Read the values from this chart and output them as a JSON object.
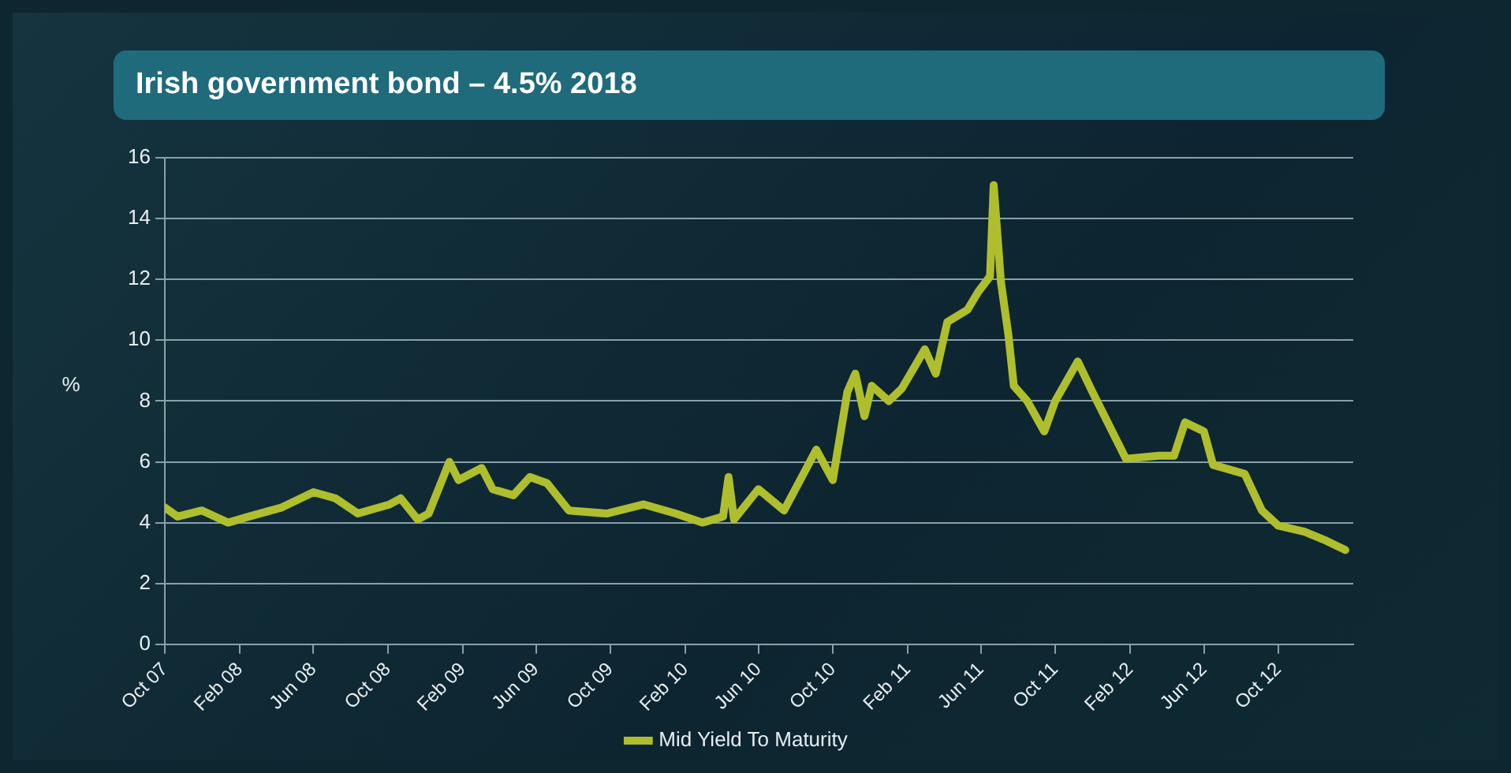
{
  "chart_data": {
    "type": "line",
    "title": "Irish government bond – 4.5% 2018",
    "ylabel": "%",
    "x": [
      "2007-10-01",
      "2007-10-22",
      "2007-12-01",
      "2008-01-13",
      "2008-02-16",
      "2008-04-10",
      "2008-06-01",
      "2008-07-07",
      "2008-08-13",
      "2008-10-04",
      "2008-10-22",
      "2008-11-19",
      "2008-12-07",
      "2009-01-10",
      "2009-01-25",
      "2009-03-04",
      "2009-03-22",
      "2009-04-25",
      "2009-05-22",
      "2009-06-19",
      "2009-07-25",
      "2009-09-25",
      "2009-11-25",
      "2010-01-16",
      "2010-03-01",
      "2010-04-04",
      "2010-04-13",
      "2010-04-22",
      "2010-06-01",
      "2010-07-13",
      "2010-09-04",
      "2010-10-01",
      "2010-10-25",
      "2010-11-07",
      "2010-11-22",
      "2010-12-04",
      "2011-01-01",
      "2011-01-22",
      "2011-03-01",
      "2011-03-19",
      "2011-04-07",
      "2011-05-10",
      "2011-05-28",
      "2011-06-16",
      "2011-06-22",
      "2011-07-04",
      "2011-07-16",
      "2011-07-25",
      "2011-08-16",
      "2011-09-13",
      "2011-10-01",
      "2011-11-07",
      "2011-12-01",
      "2012-01-25",
      "2012-03-19",
      "2012-04-13",
      "2012-05-01",
      "2012-06-01",
      "2012-06-16",
      "2012-08-07",
      "2012-09-04",
      "2012-10-01",
      "2012-11-13",
      "2012-12-19",
      "2013-01-19"
    ],
    "series": [
      {
        "name": "Mid Yield To Maturity",
        "color": "#afbe2c",
        "values": [
          4.5,
          4.2,
          4.4,
          4.0,
          4.2,
          4.5,
          5.0,
          4.8,
          4.3,
          4.6,
          4.8,
          4.1,
          4.3,
          6.0,
          5.4,
          5.8,
          5.1,
          4.9,
          5.5,
          5.3,
          4.4,
          4.3,
          4.6,
          4.3,
          4.0,
          4.2,
          5.5,
          4.1,
          5.1,
          4.4,
          6.4,
          5.4,
          8.3,
          8.9,
          7.5,
          8.5,
          8.0,
          8.4,
          9.7,
          8.9,
          10.6,
          11.0,
          11.6,
          12.1,
          15.1,
          11.9,
          10.2,
          8.5,
          8.0,
          7.0,
          8.0,
          9.3,
          8.3,
          6.1,
          6.2,
          6.2,
          7.3,
          7.0,
          5.9,
          5.6,
          4.4,
          3.9,
          3.7,
          3.4,
          3.1
        ]
      }
    ],
    "xlim": [
      "2007-10-01",
      "2013-02-01"
    ],
    "xticks": [
      {
        "value": "2007-10",
        "label": "Oct 07"
      },
      {
        "value": "2008-02",
        "label": "Feb 08"
      },
      {
        "value": "2008-06",
        "label": "Jun 08"
      },
      {
        "value": "2008-10",
        "label": "Oct 08"
      },
      {
        "value": "2009-02",
        "label": "Feb 09"
      },
      {
        "value": "2009-06",
        "label": "Jun 09"
      },
      {
        "value": "2009-10",
        "label": "Oct 09"
      },
      {
        "value": "2010-02",
        "label": "Feb 10"
      },
      {
        "value": "2010-06",
        "label": "Jun 10"
      },
      {
        "value": "2010-10",
        "label": "Oct 10"
      },
      {
        "value": "2011-02",
        "label": "Feb 11"
      },
      {
        "value": "2011-06",
        "label": "Jun 11"
      },
      {
        "value": "2011-10",
        "label": "Oct 11"
      },
      {
        "value": "2012-02",
        "label": "Feb 12"
      },
      {
        "value": "2012-06",
        "label": "Jun 12"
      },
      {
        "value": "2012-10",
        "label": "Oct 12"
      }
    ],
    "ylim": [
      0,
      16
    ],
    "yticks": [
      0,
      2,
      4,
      6,
      8,
      10,
      12,
      14,
      16
    ],
    "grid": "y",
    "legend": "bottom",
    "marker": "none",
    "line_style": "solid"
  }
}
